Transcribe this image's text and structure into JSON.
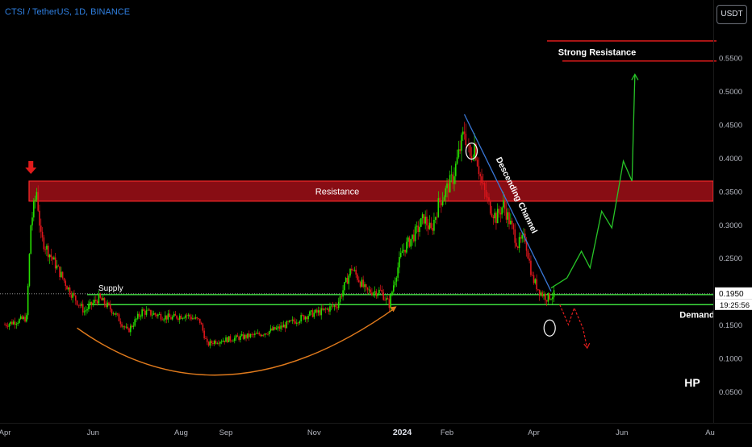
{
  "header": {
    "symbol": "CTSI / TetherUS, 1D, BINANCE",
    "currency_button": "USDT"
  },
  "price_scale": {
    "current_price": "0.1950",
    "countdown": "19:25:56"
  },
  "annotations": {
    "strong_resistance": "Strong Resistance",
    "resistance": "Resistance",
    "descending_channel": "Descending Channel",
    "supply": "Supply",
    "demand": "Demand",
    "author_mark": "HP"
  },
  "colors": {
    "background": "#000000",
    "up_candle": "#26e000",
    "down_candle": "#e0161c",
    "resistance_zone": "#b5121b",
    "support_line": "#3ddc3d",
    "channel_line": "#3a78d8",
    "cup_curve": "#e07a1c",
    "projection_up": "#27c427",
    "projection_down": "#e11d1d"
  },
  "chart_data": {
    "type": "candlestick",
    "title": "CTSI / TetherUS, 1D, BINANCE",
    "y_ticks": [
      "0.5500",
      "0.5000",
      "0.4500",
      "0.4000",
      "0.3500",
      "0.3000",
      "0.2500",
      "0.1500",
      "0.1000",
      "0.0500"
    ],
    "y_tick_values": [
      0.55,
      0.5,
      0.45,
      0.4,
      0.35,
      0.3,
      0.25,
      0.15,
      0.1,
      0.05
    ],
    "ylim": [
      0.0,
      0.58
    ],
    "x_ticks": [
      "Apr",
      "Jun",
      "Aug",
      "Sep",
      "Nov",
      "2024",
      "Feb",
      "Apr",
      "Jun",
      "Au"
    ],
    "x_tick_days": [
      0,
      61,
      122,
      153,
      214,
      275,
      306,
      366,
      427,
      488
    ],
    "xlim_days": [
      0,
      488
    ],
    "current_price": 0.195,
    "price_path_days": [
      0,
      15,
      18,
      22,
      25,
      35,
      45,
      55,
      65,
      75,
      85,
      95,
      105,
      115,
      125,
      135,
      140,
      145,
      160,
      175,
      190,
      200,
      210,
      220,
      230,
      240,
      250,
      260,
      266,
      270,
      275,
      285,
      290,
      295,
      300,
      310,
      318,
      322,
      325,
      330,
      335,
      340,
      345,
      350,
      355,
      360,
      365,
      370,
      375,
      380
    ],
    "price_path_values": [
      0.15,
      0.16,
      0.3,
      0.35,
      0.28,
      0.24,
      0.2,
      0.17,
      0.19,
      0.17,
      0.14,
      0.17,
      0.165,
      0.16,
      0.165,
      0.155,
      0.12,
      0.125,
      0.13,
      0.135,
      0.145,
      0.155,
      0.165,
      0.17,
      0.18,
      0.235,
      0.2,
      0.2,
      0.18,
      0.22,
      0.26,
      0.29,
      0.31,
      0.29,
      0.33,
      0.37,
      0.44,
      0.4,
      0.42,
      0.36,
      0.33,
      0.31,
      0.33,
      0.3,
      0.27,
      0.28,
      0.22,
      0.2,
      0.19,
      0.195
    ],
    "resistance_zone": [
      0.335,
      0.365
    ],
    "strong_resistance_levels": [
      0.575,
      0.545
    ],
    "supply_level": 0.195,
    "demand_level": 0.18,
    "descending_channel": {
      "from": [
        318,
        0.465
      ],
      "to": [
        378,
        0.2
      ]
    },
    "rounded_bottom": {
      "from_day": 50,
      "bottom_day": 150,
      "bottom_value": 0.065,
      "to_day": 270,
      "end_value": 0.175
    },
    "projection_up_days": [
      378,
      389,
      399,
      405,
      413,
      420,
      428,
      434,
      436
    ],
    "projection_up_values": [
      0.205,
      0.22,
      0.26,
      0.235,
      0.32,
      0.295,
      0.395,
      0.365,
      0.525
    ],
    "projection_down_days": [
      384,
      390,
      394,
      400,
      403
    ],
    "projection_down_values": [
      0.18,
      0.15,
      0.175,
      0.145,
      0.115
    ],
    "circles_days": [
      323,
      377
    ],
    "circles_values": [
      0.41,
      0.145
    ],
    "grid": false
  }
}
